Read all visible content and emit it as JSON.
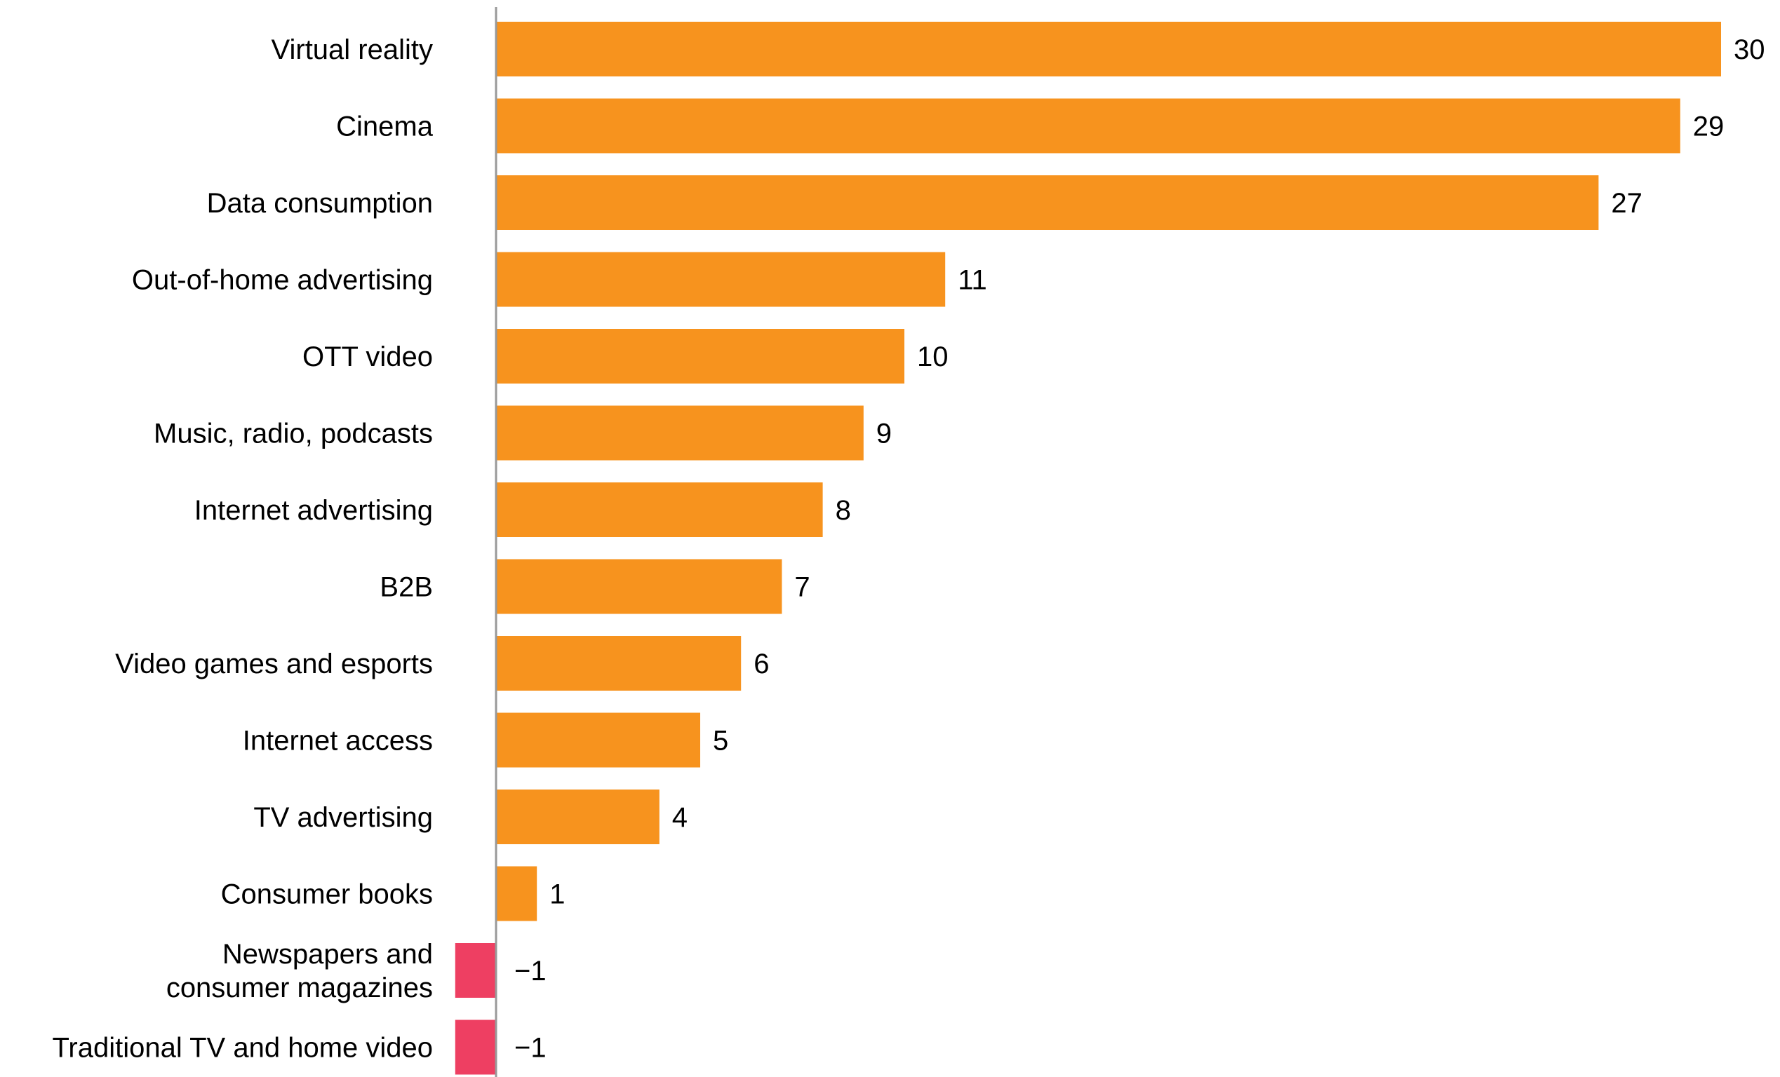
{
  "chart_data": {
    "type": "bar",
    "orientation": "horizontal",
    "title": "",
    "xlabel": "",
    "ylabel": "",
    "grid": false,
    "xlim": [
      -1,
      30
    ],
    "categories": [
      "Virtual reality",
      "Cinema",
      "Data consumption",
      "Out-of-home advertising",
      "OTT video",
      "Music, radio, podcasts",
      "Internet advertising",
      "B2B",
      "Video games and esports",
      "Internet access",
      "TV advertising",
      "Consumer books",
      "Newspapers and consumer magazines",
      "Traditional TV and home video"
    ],
    "values": [
      30,
      29,
      27,
      11,
      10,
      9,
      8,
      7,
      6,
      5,
      4,
      1,
      -1,
      -1
    ],
    "value_labels": [
      "30",
      "29",
      "27",
      "11",
      "10",
      "9",
      "8",
      "7",
      "6",
      "5",
      "4",
      "1",
      "−1",
      "−1"
    ],
    "colors": {
      "positive": "#F7931E",
      "negative": "#EE3F62",
      "axis": "#999999"
    }
  }
}
